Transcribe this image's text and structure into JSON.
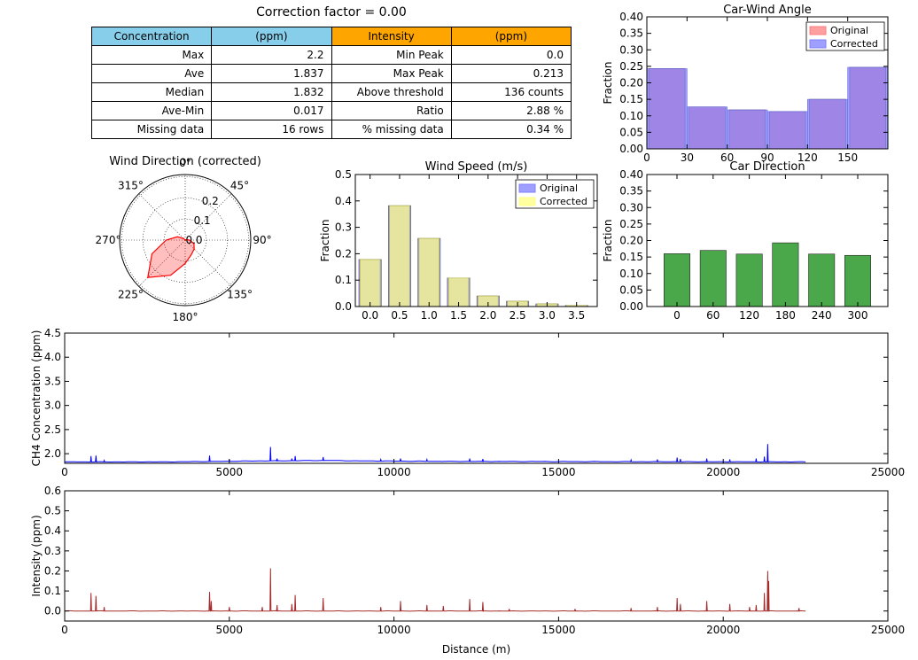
{
  "table": {
    "title": "Correction factor = 0.00",
    "header": {
      "left": [
        "Concentration",
        "(ppm)"
      ],
      "right": [
        "Intensity",
        "(ppm)"
      ],
      "left_color": "#87ceeb",
      "right_color": "#ffa500"
    },
    "rows": [
      {
        "l_label": "Max",
        "l_value": "2.2",
        "r_label": "Min Peak",
        "r_value": "0.0"
      },
      {
        "l_label": "Ave",
        "l_value": "1.837",
        "r_label": "Max Peak",
        "r_value": "0.213"
      },
      {
        "l_label": "Median",
        "l_value": "1.832",
        "r_label": "Above threshold",
        "r_value": "136 counts"
      },
      {
        "l_label": "Ave-Min",
        "l_value": "0.017",
        "r_label": "Ratio",
        "r_value": "2.88 %"
      },
      {
        "l_label": "Missing data",
        "l_value": "16 rows",
        "r_label": "% missing data",
        "r_value": "0.34 %"
      }
    ]
  },
  "chart_data": [
    {
      "id": "car-wind-angle",
      "type": "bar",
      "title": "Car-Wind Angle",
      "xlabel": "",
      "ylabel": "Fraction",
      "xlim": [
        0,
        180
      ],
      "ylim": [
        0,
        0.4
      ],
      "xticks": [
        "0",
        "30",
        "60",
        "90",
        "120",
        "150"
      ],
      "yticks": [
        "0.00",
        "0.05",
        "0.10",
        "0.15",
        "0.20",
        "0.25",
        "0.30",
        "0.35",
        "0.40"
      ],
      "legend_position": "top-right",
      "series": [
        {
          "name": "Original",
          "color": "#ff7f7f",
          "x": [
            15,
            45,
            75,
            105,
            135,
            165
          ],
          "values": [
            0.243,
            0.127,
            0.118,
            0.113,
            0.15,
            0.247
          ]
        },
        {
          "name": "Corrected",
          "color": "#7f7fff",
          "x": [
            15,
            45,
            75,
            105,
            135,
            165
          ],
          "values": [
            0.243,
            0.127,
            0.118,
            0.113,
            0.15,
            0.247
          ]
        }
      ]
    },
    {
      "id": "wind-direction",
      "type": "polar-area",
      "title": "Wind Direction (corrected)",
      "direction_labels": [
        "0°",
        "45°",
        "90°",
        "135°",
        "180°",
        "225°",
        "270°",
        "315°"
      ],
      "radial_ticks": [
        "0.0",
        "0.1",
        "0.2"
      ],
      "rmax": 0.31,
      "color": "#ff0000",
      "angles": [
        0,
        22.5,
        45,
        67.5,
        90,
        112.5,
        135,
        157.5,
        180,
        202.5,
        225,
        247.5,
        270,
        292.5,
        315,
        337.5
      ],
      "values": [
        0.0,
        0.0,
        0.0,
        0.005,
        0.02,
        0.045,
        0.06,
        0.075,
        0.11,
        0.18,
        0.25,
        0.17,
        0.09,
        0.04,
        0.01,
        0.0
      ]
    },
    {
      "id": "wind-speed",
      "type": "bar",
      "title": "Wind Speed (m/s)",
      "xlabel": "",
      "ylabel": "Fraction",
      "xlim": [
        -0.25,
        3.85
      ],
      "ylim": [
        0,
        0.5
      ],
      "xticks": [
        "0.0",
        "0.5",
        "1.0",
        "1.5",
        "2.0",
        "2.5",
        "3.0",
        "3.5"
      ],
      "yticks": [
        "0.0",
        "0.1",
        "0.2",
        "0.3",
        "0.4",
        "0.5"
      ],
      "legend_position": "top-right",
      "series": [
        {
          "name": "Original",
          "color": "#7f7fff",
          "x": [
            0,
            0.5,
            1,
            1.5,
            2,
            2.5,
            3,
            3.5
          ],
          "values": [
            0.178,
            0.382,
            0.258,
            0.108,
            0.04,
            0.02,
            0.01,
            0.004
          ]
        },
        {
          "name": "Corrected",
          "color": "#ffff7f",
          "x": [
            0,
            0.5,
            1,
            1.5,
            2,
            2.5,
            3,
            3.5
          ],
          "values": [
            0.178,
            0.382,
            0.258,
            0.108,
            0.04,
            0.02,
            0.01,
            0.004
          ]
        }
      ]
    },
    {
      "id": "car-direction",
      "type": "bar",
      "title": "Car Direction",
      "xlabel": "",
      "ylabel": "Fraction",
      "xlim": [
        -50,
        350
      ],
      "ylim": [
        0,
        0.4
      ],
      "xticks": [
        "0",
        "60",
        "120",
        "180",
        "240",
        "300"
      ],
      "yticks": [
        "0.00",
        "0.05",
        "0.10",
        "0.15",
        "0.20",
        "0.25",
        "0.30",
        "0.35",
        "0.40"
      ],
      "color": "#4aa84a",
      "x": [
        0,
        60,
        120,
        180,
        240,
        300
      ],
      "values": [
        0.16,
        0.17,
        0.159,
        0.193,
        0.159,
        0.155
      ]
    },
    {
      "id": "ch4-concentration",
      "type": "line",
      "title": "",
      "xlabel": "",
      "ylabel": "CH4 Concentration (ppm)",
      "xlim": [
        0,
        25000
      ],
      "ylim": [
        1.8,
        4.5
      ],
      "xticks": [
        "0",
        "5000",
        "10000",
        "15000",
        "20000",
        "25000"
      ],
      "yticks": [
        "2.0",
        "2.5",
        "3.0",
        "3.5",
        "4.0",
        "4.5"
      ],
      "color": "#0000ff",
      "baseline": [
        [
          0,
          1.83
        ],
        [
          3000,
          1.83
        ],
        [
          6000,
          1.85
        ],
        [
          8000,
          1.86
        ],
        [
          9000,
          1.85
        ],
        [
          12000,
          1.84
        ],
        [
          22500,
          1.83
        ]
      ],
      "peaks": [
        [
          800,
          1.95
        ],
        [
          950,
          1.96
        ],
        [
          1200,
          1.86
        ],
        [
          4400,
          1.96
        ],
        [
          5000,
          1.87
        ],
        [
          6250,
          2.14
        ],
        [
          6450,
          1.9
        ],
        [
          6900,
          1.9
        ],
        [
          7000,
          1.95
        ],
        [
          7850,
          1.93
        ],
        [
          9600,
          1.88
        ],
        [
          10200,
          1.9
        ],
        [
          11000,
          1.88
        ],
        [
          12300,
          1.9
        ],
        [
          12700,
          1.89
        ],
        [
          17200,
          1.87
        ],
        [
          18000,
          1.88
        ],
        [
          18600,
          1.92
        ],
        [
          18700,
          1.89
        ],
        [
          19500,
          1.9
        ],
        [
          20200,
          1.88
        ],
        [
          21000,
          1.9
        ],
        [
          21250,
          1.94
        ],
        [
          21350,
          2.2
        ]
      ]
    },
    {
      "id": "intensity",
      "type": "line",
      "title": "",
      "xlabel": "Distance (m)",
      "ylabel": "Intensity (ppm)",
      "xlim": [
        0,
        25000
      ],
      "ylim": [
        -0.05,
        0.6
      ],
      "xticks": [
        "0",
        "5000",
        "10000",
        "15000",
        "20000",
        "25000"
      ],
      "yticks": [
        "0.0",
        "0.1",
        "0.2",
        "0.3",
        "0.4",
        "0.5",
        "0.6"
      ],
      "color": "#a52a2a",
      "baseline": [
        [
          0,
          0.0
        ],
        [
          22500,
          0.0
        ]
      ],
      "peaks": [
        [
          800,
          0.09
        ],
        [
          950,
          0.075
        ],
        [
          1200,
          0.02
        ],
        [
          4400,
          0.095
        ],
        [
          4450,
          0.05
        ],
        [
          5000,
          0.02
        ],
        [
          6000,
          0.02
        ],
        [
          6250,
          0.213
        ],
        [
          6450,
          0.03
        ],
        [
          6900,
          0.035
        ],
        [
          7000,
          0.08
        ],
        [
          7850,
          0.065
        ],
        [
          9600,
          0.02
        ],
        [
          10200,
          0.05
        ],
        [
          11000,
          0.03
        ],
        [
          11500,
          0.025
        ],
        [
          12300,
          0.06
        ],
        [
          12700,
          0.045
        ],
        [
          13500,
          0.01
        ],
        [
          15500,
          0.01
        ],
        [
          17200,
          0.015
        ],
        [
          18000,
          0.02
        ],
        [
          18600,
          0.065
        ],
        [
          18700,
          0.035
        ],
        [
          19500,
          0.05
        ],
        [
          20200,
          0.035
        ],
        [
          20800,
          0.02
        ],
        [
          21000,
          0.03
        ],
        [
          21250,
          0.09
        ],
        [
          21350,
          0.2
        ],
        [
          21380,
          0.15
        ],
        [
          22300,
          0.015
        ]
      ]
    }
  ]
}
